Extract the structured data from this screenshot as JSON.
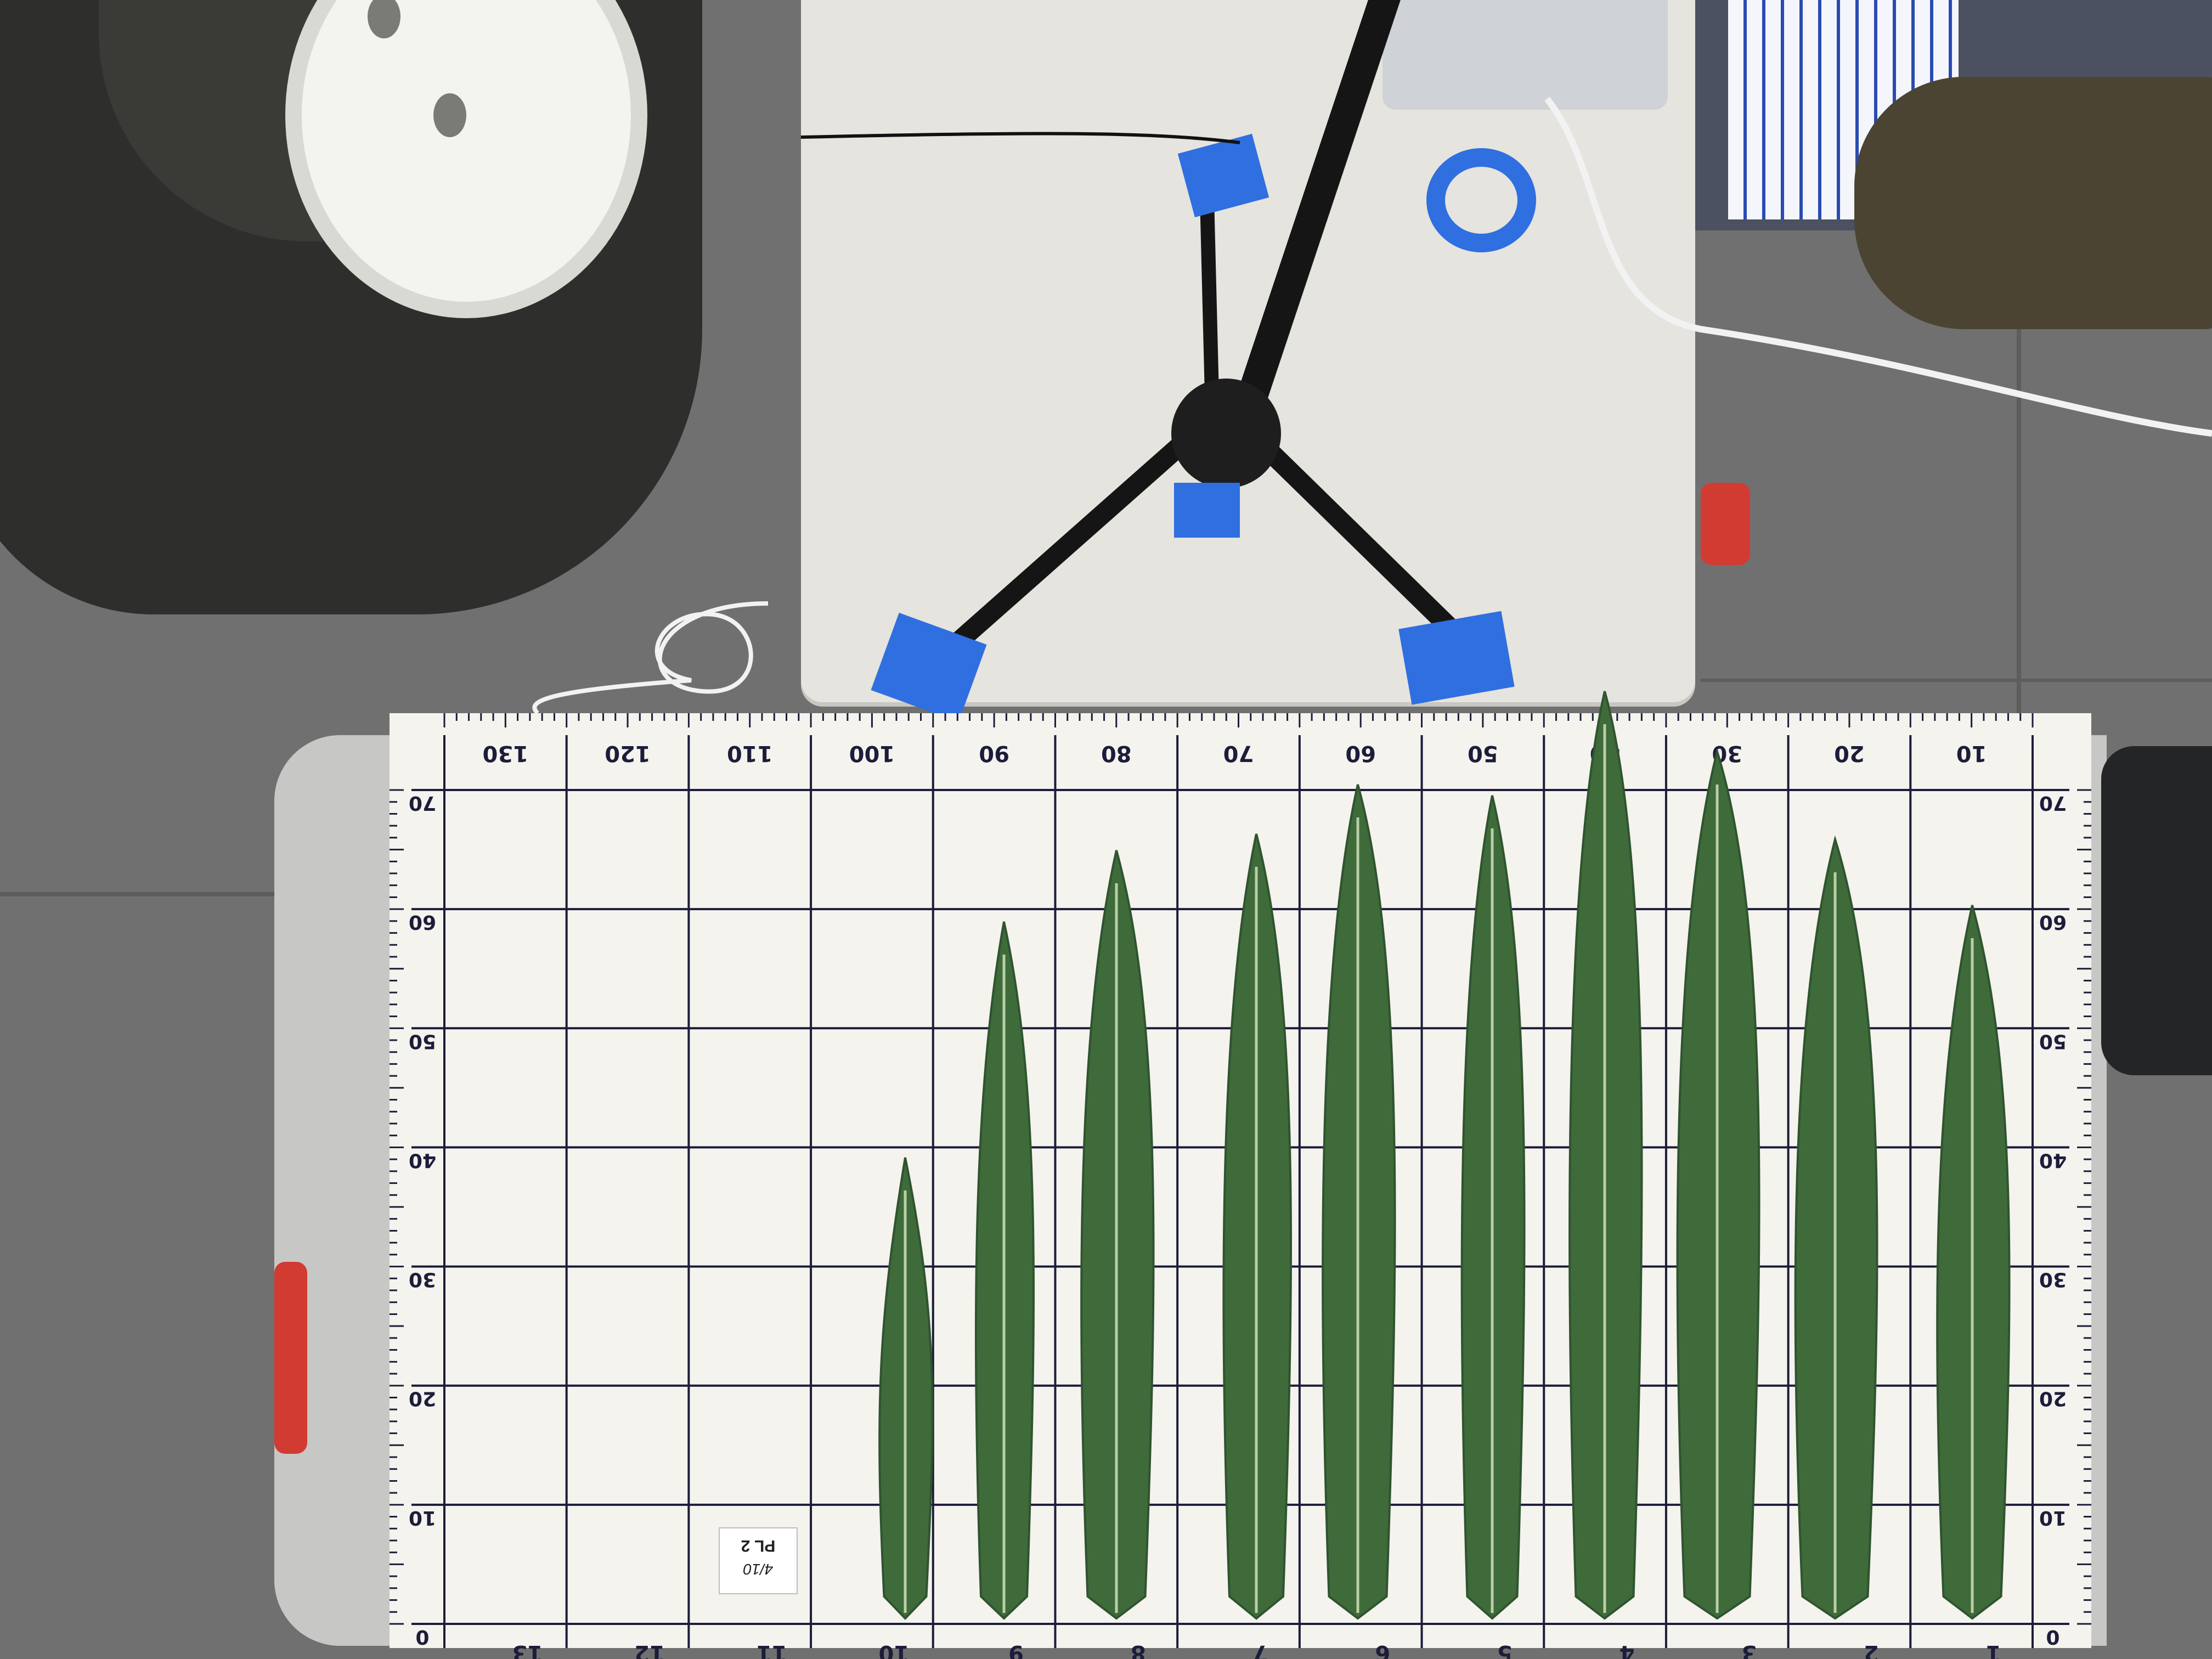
{
  "grid_board": {
    "top_scale_labels": [
      "130",
      "120",
      "110",
      "100",
      "90",
      "80",
      "70",
      "60",
      "50",
      "40",
      "30",
      "20",
      "10"
    ],
    "bottom_scale_labels": [
      "13",
      "12",
      "11",
      "10",
      "9",
      "8",
      "7",
      "6",
      "5",
      "4",
      "3",
      "2",
      "1"
    ],
    "side_scale_labels": [
      "70",
      "60",
      "50",
      "40",
      "30",
      "20",
      "10",
      "0"
    ]
  },
  "sample_label": {
    "line1": "PL 2",
    "line2": "4/10"
  },
  "leaves": {
    "count": 10,
    "color": "#3f6b3a"
  },
  "colors": {
    "grid_line": "#1c1d3a",
    "board": "#f5f3ee",
    "floor": "#6f6f6d",
    "tape": "#2f6fe0",
    "table": "#e6e4de"
  }
}
